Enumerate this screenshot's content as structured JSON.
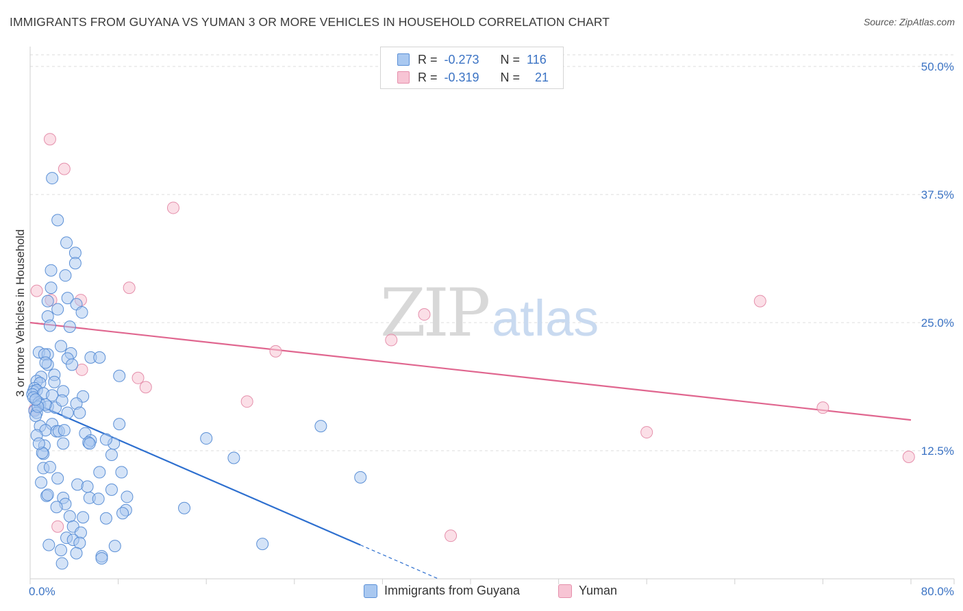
{
  "header": {
    "title": "IMMIGRANTS FROM GUYANA VS YUMAN 3 OR MORE VEHICLES IN HOUSEHOLD CORRELATION CHART",
    "source": "Source: ZipAtlas.com"
  },
  "watermark": {
    "zip": "ZIP",
    "atlas": "atlas"
  },
  "colors": {
    "blue_fill": "#a9c8f0",
    "blue_stroke": "#5a8fd6",
    "blue_line": "#2d6fcf",
    "pink_fill": "#f7c4d4",
    "pink_stroke": "#e58fab",
    "pink_line": "#e0668f",
    "axis_text": "#3b73c4",
    "grid": "#dddddd"
  },
  "legend_top": {
    "rows": [
      {
        "r_label": "R =",
        "r_value": "-0.273",
        "n_label": "N =",
        "n_value": "116"
      },
      {
        "r_label": "R =",
        "r_value": "-0.319",
        "n_label": "N =",
        "n_value": "21"
      }
    ]
  },
  "legend_bottom": {
    "items": [
      "Immigrants from Guyana",
      "Yuman"
    ]
  },
  "chart_data": {
    "type": "scatter",
    "title": "IMMIGRANTS FROM GUYANA VS YUMAN 3 OR MORE VEHICLES IN HOUSEHOLD CORRELATION CHART",
    "xlabel": "",
    "ylabel": "3 or more Vehicles in Household",
    "xlim": [
      0,
      80
    ],
    "ylim": [
      0,
      50
    ],
    "x_tick_labels": [
      "0.0%",
      "80.0%"
    ],
    "y_ticks": [
      12.5,
      25.0,
      37.5,
      50.0
    ],
    "y_tick_labels": [
      "12.5%",
      "25.0%",
      "37.5%",
      "50.0%"
    ],
    "grid": true,
    "legend_position": "bottom",
    "series": [
      {
        "name": "Immigrants from Guyana",
        "color": "#a9c8f0",
        "r": -0.273,
        "n": 116,
        "trend": {
          "x": [
            0,
            30
          ],
          "y": [
            17.3,
            3.3
          ],
          "dashed_extension_to_x": 37
        },
        "points": [
          [
            2.0,
            39.1
          ],
          [
            2.5,
            35.0
          ],
          [
            3.3,
            32.8
          ],
          [
            4.1,
            31.8
          ],
          [
            4.1,
            30.8
          ],
          [
            1.9,
            30.1
          ],
          [
            3.2,
            29.6
          ],
          [
            1.9,
            28.4
          ],
          [
            3.4,
            27.4
          ],
          [
            1.6,
            27.1
          ],
          [
            4.2,
            26.8
          ],
          [
            2.5,
            26.3
          ],
          [
            4.7,
            26.0
          ],
          [
            1.6,
            25.6
          ],
          [
            3.6,
            24.6
          ],
          [
            1.8,
            24.7
          ],
          [
            2.8,
            22.7
          ],
          [
            0.8,
            22.1
          ],
          [
            1.6,
            21.9
          ],
          [
            3.7,
            22.0
          ],
          [
            1.3,
            21.9
          ],
          [
            5.5,
            21.6
          ],
          [
            6.3,
            21.6
          ],
          [
            3.4,
            21.5
          ],
          [
            1.6,
            20.9
          ],
          [
            1.4,
            21.1
          ],
          [
            3.8,
            20.9
          ],
          [
            2.2,
            19.9
          ],
          [
            8.1,
            19.8
          ],
          [
            1.0,
            19.7
          ],
          [
            0.6,
            19.3
          ],
          [
            2.2,
            19.2
          ],
          [
            0.9,
            19.1
          ],
          [
            0.4,
            18.6
          ],
          [
            0.3,
            18.3
          ],
          [
            0.6,
            18.4
          ],
          [
            1.2,
            18.1
          ],
          [
            3.0,
            18.3
          ],
          [
            0.2,
            18.0
          ],
          [
            2.0,
            17.9
          ],
          [
            0.3,
            17.7
          ],
          [
            4.8,
            17.8
          ],
          [
            0.8,
            17.2
          ],
          [
            4.2,
            17.1
          ],
          [
            0.9,
            17.0
          ],
          [
            1.6,
            16.8
          ],
          [
            2.3,
            16.7
          ],
          [
            0.4,
            16.4
          ],
          [
            0.6,
            16.2
          ],
          [
            3.4,
            16.2
          ],
          [
            4.5,
            16.2
          ],
          [
            0.5,
            15.9
          ],
          [
            2.0,
            15.1
          ],
          [
            8.1,
            15.1
          ],
          [
            0.9,
            14.9
          ],
          [
            1.4,
            14.5
          ],
          [
            2.4,
            14.4
          ],
          [
            2.6,
            14.4
          ],
          [
            5.0,
            14.2
          ],
          [
            0.6,
            14.0
          ],
          [
            16.0,
            13.7
          ],
          [
            5.5,
            13.5
          ],
          [
            5.3,
            13.3
          ],
          [
            3.0,
            13.2
          ],
          [
            5.4,
            13.2
          ],
          [
            7.6,
            13.2
          ],
          [
            1.3,
            13.0
          ],
          [
            1.2,
            12.2
          ],
          [
            1.1,
            12.3
          ],
          [
            7.4,
            12.1
          ],
          [
            18.5,
            11.8
          ],
          [
            1.2,
            10.8
          ],
          [
            1.8,
            10.9
          ],
          [
            8.3,
            10.4
          ],
          [
            6.3,
            10.4
          ],
          [
            2.5,
            9.8
          ],
          [
            30.0,
            9.9
          ],
          [
            1.0,
            9.4
          ],
          [
            4.3,
            9.2
          ],
          [
            7.4,
            8.7
          ],
          [
            1.5,
            8.1
          ],
          [
            1.6,
            8.2
          ],
          [
            3.0,
            7.9
          ],
          [
            5.4,
            7.9
          ],
          [
            6.2,
            7.8
          ],
          [
            8.8,
            8.0
          ],
          [
            3.2,
            7.3
          ],
          [
            2.4,
            7.0
          ],
          [
            14.0,
            6.9
          ],
          [
            8.7,
            6.7
          ],
          [
            8.4,
            6.4
          ],
          [
            3.6,
            6.1
          ],
          [
            4.8,
            6.0
          ],
          [
            6.9,
            5.9
          ],
          [
            3.9,
            5.1
          ],
          [
            4.6,
            4.5
          ],
          [
            3.3,
            4.0
          ],
          [
            3.9,
            3.8
          ],
          [
            4.5,
            3.5
          ],
          [
            21.1,
            3.4
          ],
          [
            1.7,
            3.3
          ],
          [
            7.7,
            3.2
          ],
          [
            2.8,
            2.8
          ],
          [
            4.2,
            2.5
          ],
          [
            6.5,
            2.2
          ],
          [
            6.5,
            2.0
          ],
          [
            2.9,
            1.5
          ],
          [
            1.4,
            17.0
          ],
          [
            0.7,
            16.8
          ],
          [
            0.5,
            17.5
          ],
          [
            2.9,
            17.4
          ],
          [
            6.9,
            13.6
          ],
          [
            3.1,
            14.5
          ],
          [
            26.4,
            14.9
          ],
          [
            0.8,
            13.2
          ],
          [
            5.2,
            9.0
          ]
        ]
      },
      {
        "name": "Yuman",
        "color": "#f7c4d4",
        "r": -0.319,
        "n": 21,
        "trend": {
          "x": [
            0,
            80
          ],
          "y": [
            25.0,
            15.5
          ]
        },
        "points": [
          [
            1.8,
            42.9
          ],
          [
            3.1,
            40.0
          ],
          [
            13.0,
            36.2
          ],
          [
            0.6,
            28.1
          ],
          [
            9.0,
            28.4
          ],
          [
            4.6,
            27.2
          ],
          [
            1.9,
            27.2
          ],
          [
            35.8,
            25.8
          ],
          [
            22.3,
            22.2
          ],
          [
            66.3,
            27.1
          ],
          [
            32.8,
            23.3
          ],
          [
            9.8,
            19.6
          ],
          [
            4.7,
            20.4
          ],
          [
            10.5,
            18.7
          ],
          [
            19.7,
            17.3
          ],
          [
            72.0,
            16.7
          ],
          [
            56.0,
            14.3
          ],
          [
            79.8,
            11.9
          ],
          [
            2.5,
            5.1
          ],
          [
            38.2,
            4.2
          ],
          [
            0.4,
            16.5
          ]
        ]
      }
    ]
  }
}
